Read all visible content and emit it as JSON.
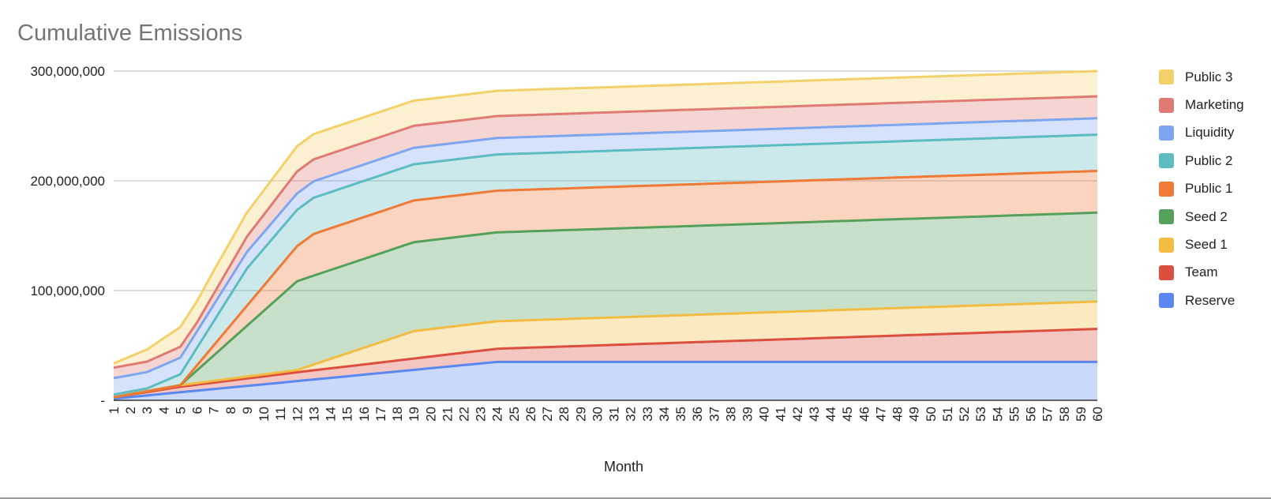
{
  "chart_data": {
    "type": "area",
    "stacked": true,
    "title": "Cumulative Emissions",
    "xlabel": "Month",
    "ylabel": "",
    "ylim": [
      0,
      300000000
    ],
    "yticks": [
      {
        "value": 0,
        "label": "-"
      },
      {
        "value": 100000000,
        "label": "100,000,000"
      },
      {
        "value": 200000000,
        "label": "200,000,000"
      },
      {
        "value": 300000000,
        "label": "300,000,000"
      }
    ],
    "xlim": [
      1,
      60
    ],
    "grid": true,
    "legend_position": "right",
    "series": [
      {
        "name": "Reserve",
        "color": "#5a88f0",
        "x": [
          1,
          24,
          60
        ],
        "values": [
          1500000,
          35000000,
          35000000
        ]
      },
      {
        "name": "Team",
        "color": "#dc4f3f",
        "x": [
          1,
          5,
          12,
          24,
          60
        ],
        "values": [
          1200000,
          5000000,
          8000000,
          12000000,
          30000000
        ]
      },
      {
        "name": "Seed 1",
        "color": "#f2bc42",
        "x": [
          1,
          5,
          12,
          19,
          24,
          60
        ],
        "values": [
          0,
          1500000,
          2000000,
          25000000,
          25000000,
          25000000
        ]
      },
      {
        "name": "Seed 2",
        "color": "#55a05a",
        "x": [
          1,
          5,
          12,
          24,
          60
        ],
        "values": [
          0,
          0,
          81000000,
          81000000,
          81000000
        ]
      },
      {
        "name": "Public 1",
        "color": "#ee7a35",
        "x": [
          1,
          5,
          12,
          13,
          19,
          24,
          60
        ],
        "values": [
          0,
          0,
          32000000,
          38000000,
          38000000,
          38000000,
          38000000
        ]
      },
      {
        "name": "Public 2",
        "color": "#5cbcc0",
        "x": [
          1,
          3,
          5,
          6,
          9,
          12,
          13,
          19,
          24,
          60
        ],
        "values": [
          2500000,
          2500000,
          10000000,
          16000000,
          34000000,
          33000000,
          33000000,
          33000000,
          33000000,
          33000000
        ]
      },
      {
        "name": "Liquidity",
        "color": "#7ea6ef",
        "x": [
          1,
          3,
          5,
          12,
          13,
          19,
          24,
          60
        ],
        "values": [
          15000000,
          15000000,
          15000000,
          15000000,
          15000000,
          15000000,
          15000000,
          15000000
        ]
      },
      {
        "name": "Marketing",
        "color": "#df7b73",
        "x": [
          1,
          3,
          5,
          6,
          12,
          13,
          19,
          24,
          60
        ],
        "values": [
          9500000,
          9500000,
          10000000,
          8000000,
          20000000,
          20000000,
          20000000,
          20000000,
          20000000
        ]
      },
      {
        "name": "Public 3",
        "color": "#f3d16a",
        "x": [
          1,
          3,
          5,
          7,
          9,
          12,
          13,
          19,
          24,
          60
        ],
        "values": [
          4000000,
          11000000,
          18000000,
          21000000,
          22000000,
          23000000,
          23000000,
          23000000,
          23000000,
          23000000
        ]
      }
    ]
  }
}
